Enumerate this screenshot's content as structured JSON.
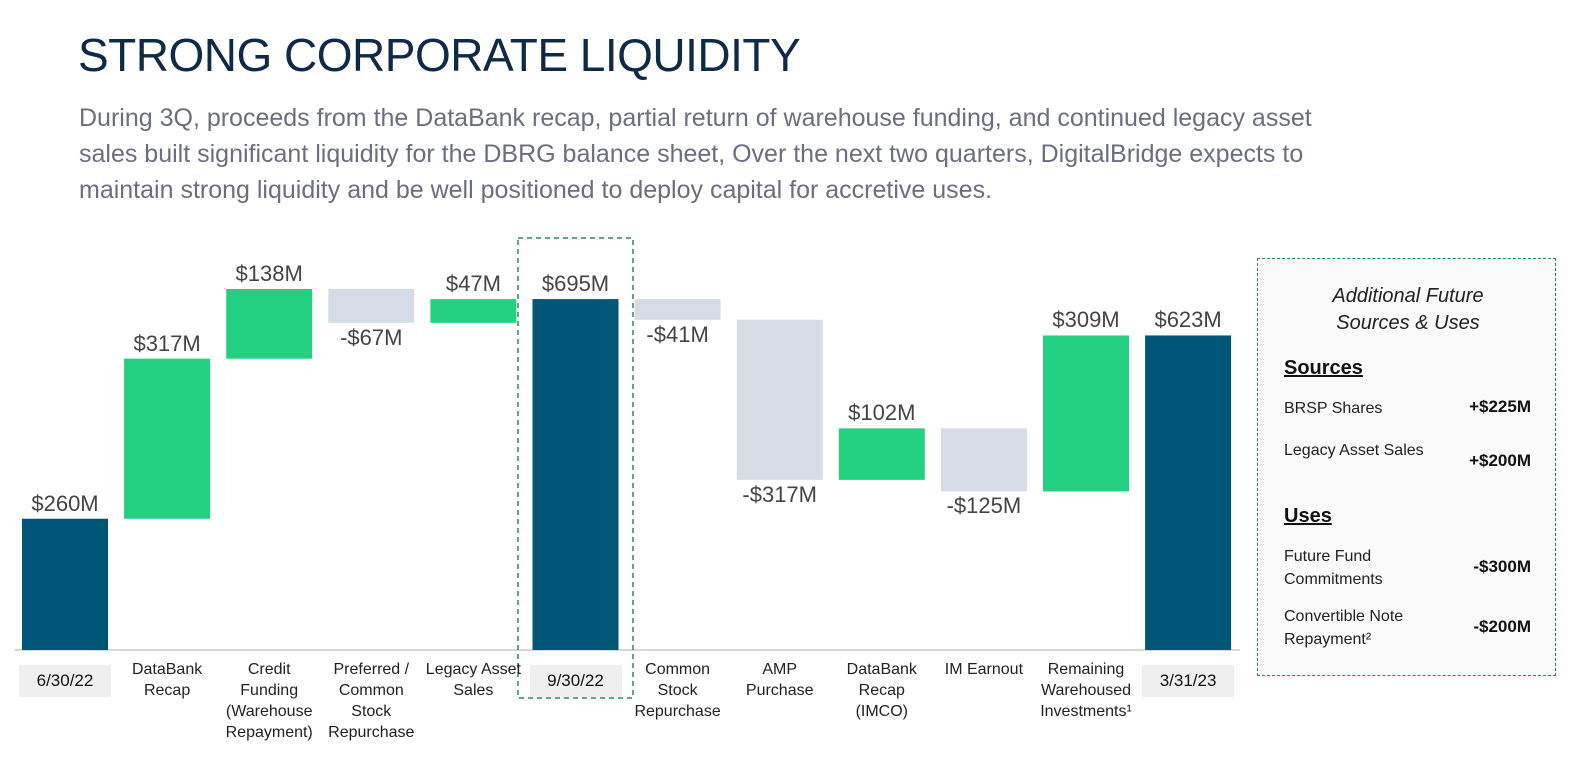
{
  "chart_data": {
    "type": "waterfall",
    "title": "STRONG CORPORATE LIQUIDITY",
    "subtitle": [
      "During 3Q, proceeds from the DataBank recap, partial return of warehouse funding, and continued legacy asset",
      "sales built significant liquidity for the DBRG balance sheet,  Over the next two quarters, DigitalBridge expects to",
      "maintain strong liquidity and be well positioned to deploy capital for accretive uses."
    ],
    "categories": [
      "6/30/22",
      "DataBank Recap",
      "Credit Funding (Warehouse Repayment)",
      "Preferred / Common Stock Repurchase",
      "Legacy Asset Sales",
      "9/30/22",
      "Common Stock Repurchase",
      "AMP Purchase",
      "DataBank Recap (IMCO)",
      "IM Earnout",
      "Remaining Warehoused Investments¹",
      "3/31/23"
    ],
    "values": [
      260,
      317,
      138,
      -67,
      47,
      695,
      -41,
      -317,
      102,
      -125,
      309,
      623
    ],
    "value_labels": [
      "$260M",
      "$317M",
      "$138M",
      "-$67M",
      "$47M",
      "$695M",
      "-$41M",
      "-$317M",
      "$102M",
      "-$125M",
      "$309M",
      "$623M"
    ],
    "is_total": [
      true,
      false,
      false,
      false,
      false,
      true,
      false,
      false,
      false,
      false,
      false,
      true
    ],
    "colors": {
      "total": "#005677",
      "increase": "#22d07f",
      "decrease": "#d6dce5"
    },
    "panel": {
      "title": "Additional Future Sources & Uses",
      "sections": [
        {
          "heading": "Sources",
          "items": [
            {
              "label": "BRSP Shares",
              "value": "+$225M"
            },
            {
              "label": "Legacy Asset Sales",
              "value": "+$200M"
            }
          ]
        },
        {
          "heading": "Uses",
          "items": [
            {
              "label": "Future Fund Commitments",
              "value": "-$300M"
            },
            {
              "label": "Convertible Note Repayment²",
              "value": "-$200M"
            }
          ]
        }
      ]
    }
  }
}
